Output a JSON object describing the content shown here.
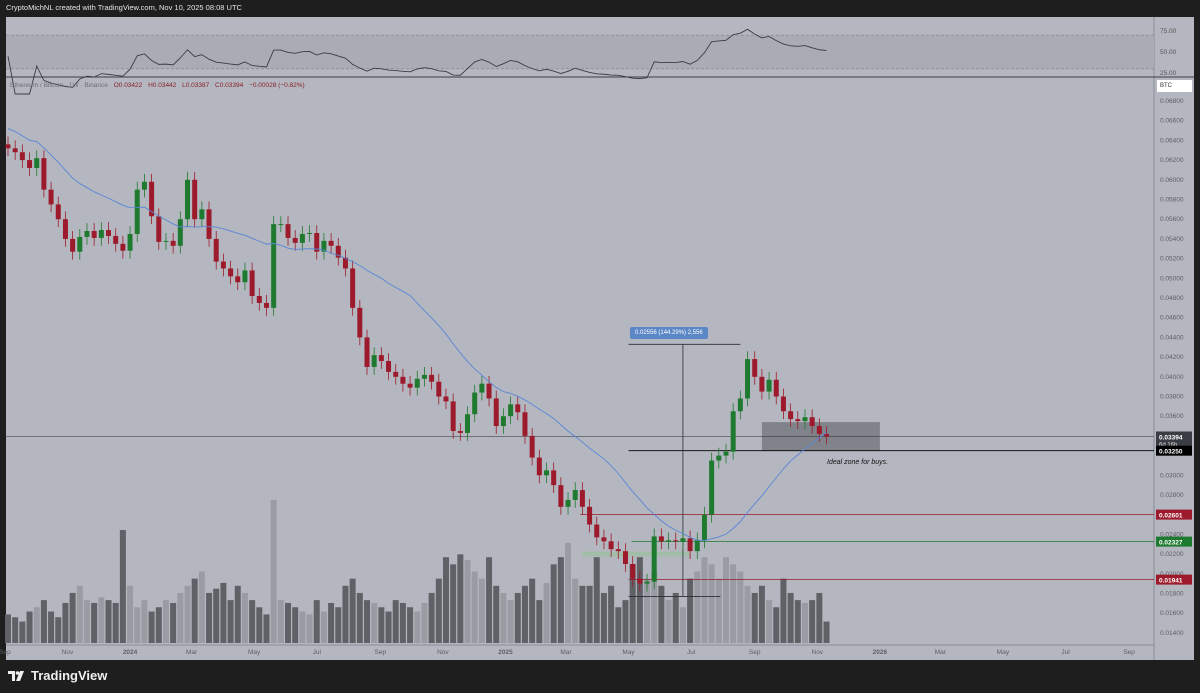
{
  "header": {
    "title": "CryptoMichNL created with TradingView.com, Nov 10, 2025 08:08 UTC"
  },
  "legend": {
    "symbol": "Ethereum / Bitcoin · 1W · Binance",
    "open": "O0.03422",
    "high": "H0.03442",
    "low": "L0.03387",
    "close": "C0.03394",
    "change": "−0.00028 (−0.82%)"
  },
  "footer": {
    "brand": "TradingView"
  },
  "currency_label": "BTC",
  "annotations": {
    "measure_label": "0.02556 (144.29%) 2,556",
    "zone_text": "Ideal zone for buys.",
    "countdown": "6d 16h"
  },
  "colors": {
    "up": "#1e7a2e",
    "down": "#9c1a2b",
    "ma": "#5a86d6",
    "background": "#b4b7bf",
    "rsi": "#3a3d44"
  },
  "chart_data": {
    "type": "candlestick",
    "interval": "1W",
    "first_week": "2023-09-04",
    "closes": [
      0.0632,
      0.0628,
      0.062,
      0.0612,
      0.0622,
      0.059,
      0.0575,
      0.056,
      0.054,
      0.0527,
      0.0542,
      0.0548,
      0.0541,
      0.0549,
      0.0543,
      0.0535,
      0.0528,
      0.0545,
      0.059,
      0.0598,
      0.0563,
      0.0537,
      0.0538,
      0.0533,
      0.056,
      0.06,
      0.056,
      0.057,
      0.054,
      0.0517,
      0.051,
      0.0502,
      0.0496,
      0.0508,
      0.0482,
      0.0475,
      0.047,
      0.0555,
      0.0555,
      0.0541,
      0.0536,
      0.0545,
      0.0546,
      0.0527,
      0.0538,
      0.0533,
      0.0521,
      0.051,
      0.047,
      0.044,
      0.041,
      0.0422,
      0.0416,
      0.0405,
      0.04,
      0.0393,
      0.0389,
      0.0398,
      0.0402,
      0.0395,
      0.038,
      0.0375,
      0.0345,
      0.0343,
      0.0362,
      0.0384,
      0.0393,
      0.0378,
      0.035,
      0.036,
      0.0372,
      0.0364,
      0.034,
      0.0318,
      0.03,
      0.0305,
      0.029,
      0.0268,
      0.0275,
      0.0285,
      0.0268,
      0.025,
      0.0237,
      0.0233,
      0.0225,
      0.0223,
      0.021,
      0.0195,
      0.019,
      0.0192,
      0.0238,
      0.0233,
      0.0234,
      0.0233,
      0.0236,
      0.0223,
      0.0234,
      0.026,
      0.0315,
      0.032,
      0.0324,
      0.0365,
      0.0378,
      0.0418,
      0.04,
      0.0385,
      0.0397,
      0.038,
      0.0365,
      0.0357,
      0.0355,
      0.0359,
      0.035,
      0.0342,
      0.03394
    ],
    "first_open": 0.0636,
    "volume": [
      20,
      18,
      15,
      22,
      25,
      30,
      22,
      18,
      28,
      35,
      40,
      30,
      28,
      32,
      30,
      28,
      79,
      40,
      25,
      30,
      22,
      25,
      30,
      28,
      35,
      40,
      45,
      50,
      35,
      38,
      42,
      30,
      40,
      35,
      30,
      25,
      20,
      100,
      30,
      28,
      25,
      22,
      20,
      30,
      22,
      28,
      25,
      40,
      45,
      35,
      30,
      28,
      25,
      22,
      30,
      28,
      25,
      22,
      28,
      35,
      45,
      60,
      55,
      62,
      58,
      50,
      45,
      60,
      40,
      35,
      30,
      35,
      40,
      45,
      30,
      42,
      55,
      60,
      70,
      45,
      40,
      40,
      60,
      35,
      40,
      25,
      30,
      55,
      60,
      45,
      50,
      40,
      30,
      35,
      25,
      45,
      50,
      60,
      55,
      45,
      60,
      55,
      50,
      40,
      35,
      40,
      30,
      25,
      45,
      35,
      30,
      28,
      30,
      35,
      15
    ],
    "ma_period": 20,
    "rsi_period": 14,
    "price_axis": {
      "range": [
        0.013,
        0.0685
      ],
      "ticks": [
        "0.06800",
        "0.06600",
        "0.06400",
        "0.06200",
        "0.06000",
        "0.05800",
        "0.05600",
        "0.05400",
        "0.05200",
        "0.05000",
        "0.04800",
        "0.04600",
        "0.04400",
        "0.04200",
        "0.04000",
        "0.03800",
        "0.03600",
        "0.03000",
        "0.02800",
        "0.02400",
        "0.02200",
        "0.02000",
        "0.01800",
        "0.01600",
        "0.01400"
      ]
    },
    "rsi_axis": {
      "ticks": [
        "75.00",
        "50.00",
        "25.00"
      ],
      "band": [
        30,
        70
      ]
    },
    "x_ticks": [
      {
        "date": "2023-09-01",
        "label": "Sep"
      },
      {
        "date": "2023-11-01",
        "label": "Nov"
      },
      {
        "date": "2024-01-01",
        "label": "2024"
      },
      {
        "date": "2024-03-01",
        "label": "Mar"
      },
      {
        "date": "2024-05-01",
        "label": "May"
      },
      {
        "date": "2024-07-01",
        "label": "Jul"
      },
      {
        "date": "2024-09-01",
        "label": "Sep"
      },
      {
        "date": "2024-11-01",
        "label": "Nov"
      },
      {
        "date": "2025-01-01",
        "label": "2025"
      },
      {
        "date": "2025-03-01",
        "label": "Mar"
      },
      {
        "date": "2025-05-01",
        "label": "May"
      },
      {
        "date": "2025-07-01",
        "label": "Jul"
      },
      {
        "date": "2025-09-01",
        "label": "Sep"
      },
      {
        "date": "2025-11-01",
        "label": "Nov"
      },
      {
        "date": "2026-01-01",
        "label": "2026"
      },
      {
        "date": "2026-03-01",
        "label": "Mar"
      },
      {
        "date": "2026-05-01",
        "label": "May"
      },
      {
        "date": "2026-07-01",
        "label": "Jul"
      },
      {
        "date": "2026-09-01",
        "label": "Sep"
      }
    ],
    "levels": [
      {
        "price": 0.03394,
        "label": "0.03394",
        "color": "#2a2d34",
        "from": "2023-09-01",
        "style": "current"
      },
      {
        "price": 0.0325,
        "label": "0.03250",
        "color": "#000000",
        "from": "2025-05-01",
        "style": "solid"
      },
      {
        "price": 0.02601,
        "label": "0.02601",
        "color": "#9c1a2b",
        "from": "2025-03-15",
        "style": "solid"
      },
      {
        "price": 0.02327,
        "label": "0.02327",
        "color": "#1e7a2e",
        "from": "2025-05-04",
        "style": "solid"
      },
      {
        "price": 0.01941,
        "label": "0.01941",
        "color": "#9c1a2b",
        "from": "2025-05-01",
        "style": "solid"
      }
    ],
    "zones": [
      {
        "name": "buy-zone",
        "from": "2025-09-08",
        "to": "2026-01-01",
        "top": 0.0354,
        "bottom": 0.0325,
        "color": "#6f7278"
      },
      {
        "name": "support-zone",
        "from": "2025-03-17",
        "to": "2025-06-30",
        "top": 0.02225,
        "bottom": 0.02175,
        "color": "#9ec0a0"
      }
    ],
    "measure": {
      "date": "2025-06-23",
      "from_date": "2025-05-01",
      "to_date": "2025-08-18",
      "low": 0.0177,
      "high": 0.0433
    }
  }
}
